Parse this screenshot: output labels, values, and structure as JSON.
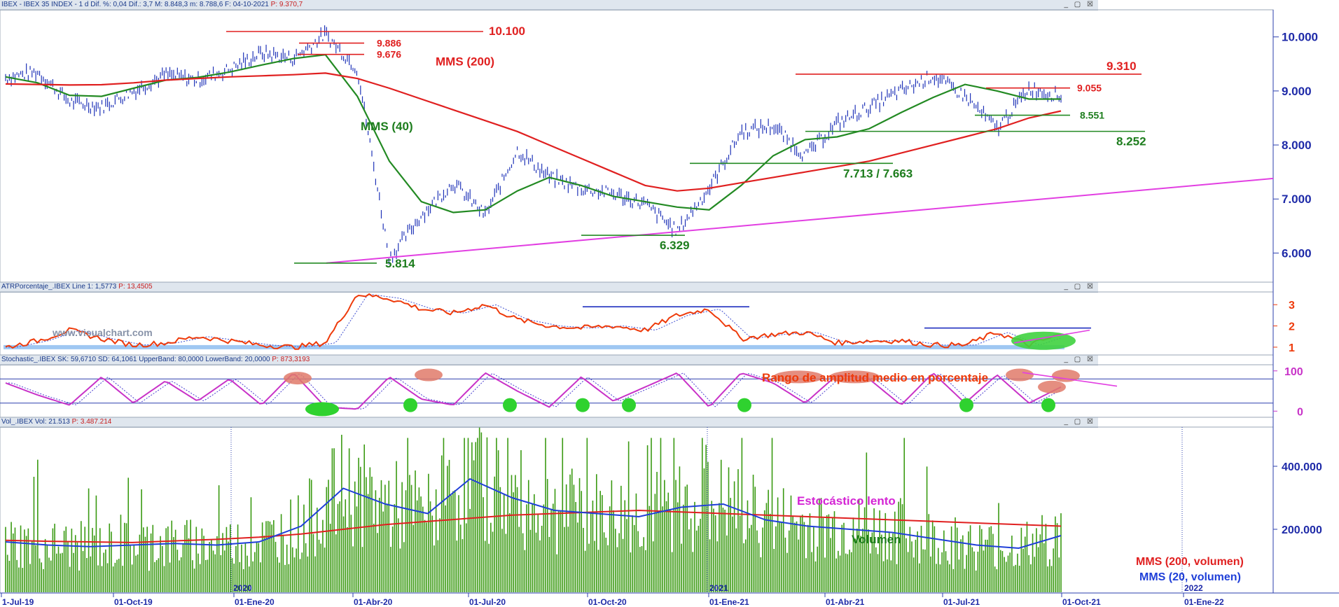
{
  "panels": {
    "price": {
      "header": "IBEX - IBEX 35 INDEX - 1 d",
      "values": "Dif. %: 0,04  Dif.: 3,7  M: 8.848,3  m: 8.788,6  F: 04-10-2021",
      "last": "P: 9.370,7"
    },
    "atr": {
      "header": "ATRPorcentaje_.IBEX",
      "values": "Line 1: 1,5773",
      "last": "P: 13,4505"
    },
    "stoch": {
      "header": "Stochastic_.IBEX",
      "values": "SK: 59,6710  SD: 64,1061  UpperBand: 80,0000  LowerBand: 20,0000",
      "last": "P: 873,3193"
    },
    "vol": {
      "header": "Vol_.IBEX",
      "values": "Vol: 21.513",
      "last": "P: 3.487.214"
    }
  },
  "window_controls": "_ ▢ ☒",
  "watermark": "www.visualchart.com",
  "colors": {
    "price_bars": "#1f33b8",
    "mms40": "#238a23",
    "mms200": "#e02020",
    "trend": "#e23fe2",
    "stoch": "#c832c8",
    "stoch_sd": "#4a3fd0",
    "atr_line": "#ee3a0a",
    "volume": "#3a9a12",
    "vol_mms20": "#1f3fd8",
    "vol_mms200": "#e02020"
  },
  "chart_data": [
    {
      "type": "line",
      "title": "",
      "ylim": [
        5500,
        10450
      ],
      "y_ticks": [
        "10.000",
        "9.000",
        "8.000",
        "7.000",
        "6.000"
      ],
      "x_ticks": [
        "1-Jul-19",
        "01-Oct-19",
        "01-Ene-20",
        "01-Abr-20",
        "01-Jul-20",
        "01-Oct-20",
        "01-Ene-21",
        "01-Abr-21",
        "01-Jul-21",
        "01-Oct-21",
        "01-Ene-22"
      ],
      "year_marks": [
        "2020",
        "2021",
        "2022"
      ],
      "series": [
        {
          "name": "MMS (40)",
          "values": [
            9260,
            9150,
            8920,
            8900,
            9050,
            9200,
            9250,
            9350,
            9480,
            9600,
            9670,
            8900,
            7700,
            6950,
            6750,
            6800,
            7150,
            7400,
            7250,
            7050,
            6950,
            6850,
            6800,
            7250,
            7800,
            8100,
            8150,
            8300,
            8600,
            8880,
            9120,
            9000,
            8850,
            8850
          ]
        },
        {
          "name": "MMS (200)",
          "values": [
            9130,
            9120,
            9110,
            9115,
            9150,
            9200,
            9230,
            9260,
            9280,
            9300,
            9330,
            9230,
            9050,
            8850,
            8650,
            8450,
            8250,
            8000,
            7750,
            7500,
            7250,
            7150,
            7200,
            7300,
            7400,
            7500,
            7600,
            7700,
            7850,
            8000,
            8150,
            8300,
            8500,
            8630
          ]
        }
      ],
      "annotations": [
        "10.100",
        "9.886",
        "9.676",
        "MMS (200)",
        "MMS (40)",
        "9.310",
        "9.055",
        "8.551",
        "8.252",
        "7.713 / 7.663",
        "6.329",
        "5.814"
      ]
    },
    {
      "type": "line",
      "title": "Rango de amplitud medio en porcentaje",
      "ylim": [
        0.7,
        3.5
      ],
      "y_ticks": [
        "3",
        "2",
        "1"
      ],
      "series": [
        {
          "name": "Line 1",
          "values": [
            1.0,
            1.3,
            1.8,
            1.4,
            1.1,
            1.2,
            1.5,
            1.3,
            1.1,
            1.0,
            1.2,
            3.5,
            3.3,
            2.8,
            2.6,
            3.0,
            2.3,
            2.0,
            1.9,
            2.0,
            1.8,
            2.5,
            2.8,
            1.4,
            1.6,
            1.7,
            1.2,
            1.3,
            1.3,
            1.1,
            1.1,
            1.7,
            1.1,
            1.6
          ]
        }
      ]
    },
    {
      "type": "line",
      "title": "Estocástico lento",
      "ylim": [
        -10,
        110
      ],
      "y_ticks": [
        "100",
        "0"
      ],
      "bands": {
        "upper": 80,
        "lower": 20
      },
      "series": [
        {
          "name": "SK",
          "values": [
            70,
            40,
            15,
            85,
            20,
            75,
            25,
            80,
            15,
            95,
            10,
            5,
            85,
            30,
            15,
            95,
            50,
            10,
            85,
            25,
            60,
            95,
            10,
            95,
            70,
            20,
            90,
            80,
            15,
            95,
            20,
            90,
            20,
            60
          ]
        }
      ]
    },
    {
      "type": "bar",
      "title": "Volumen",
      "ylim": [
        0,
        520000
      ],
      "y_ticks": [
        "400.000",
        "200.000"
      ],
      "series": [
        {
          "name": "MMS (200, volumen)",
          "values": [
            165000,
            162000,
            160000,
            158000,
            163000,
            168000,
            175000,
            185000,
            200000,
            215000,
            225000,
            235000,
            245000,
            250000,
            255000,
            260000,
            255000,
            250000,
            245000,
            240000,
            235000,
            230000,
            225000,
            220000,
            215000,
            210000
          ]
        },
        {
          "name": "MMS (20, volumen)",
          "values": [
            160000,
            150000,
            145000,
            150000,
            155000,
            150000,
            160000,
            210000,
            330000,
            280000,
            250000,
            360000,
            300000,
            260000,
            250000,
            240000,
            270000,
            280000,
            230000,
            210000,
            200000,
            190000,
            170000,
            150000,
            140000,
            180000
          ]
        }
      ]
    }
  ]
}
